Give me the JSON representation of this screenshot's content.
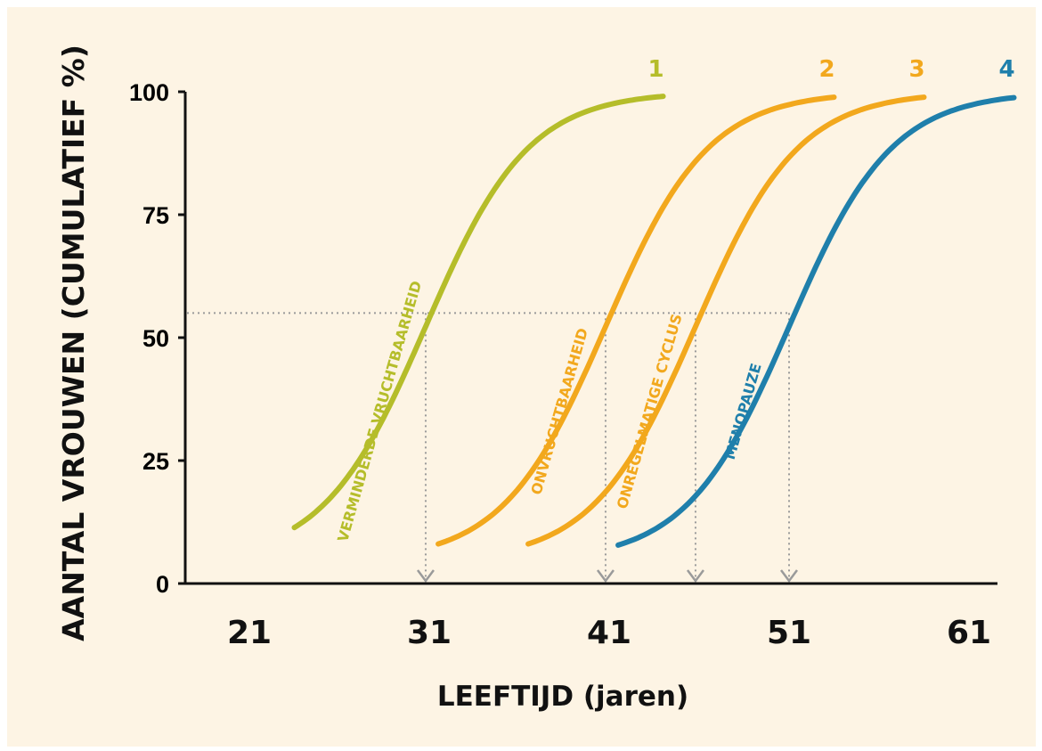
{
  "chart_data": {
    "type": "line",
    "xlabel": "LEEFTIJD (jaren)",
    "ylabel": "AANTAL VROUWEN (CUMULATIEF %)",
    "x_ticks": [
      "21",
      "31",
      "41",
      "51",
      "61"
    ],
    "y_ticks": [
      "0",
      "25",
      "50",
      "75",
      "100"
    ],
    "xlim": [
      18.5,
      63
    ],
    "ylim": [
      0,
      100
    ],
    "reference_y": 55,
    "grid": false,
    "series": [
      {
        "number": "1",
        "name": "VERMINDERDE VRUCHTBAARHEID",
        "color": "#b5bd2a",
        "midpoint": 30.8,
        "x_start": 23.5,
        "x_end": 44.0
      },
      {
        "number": "2",
        "name": "ONVRUCHTBAARHEID",
        "color": "#f2a81d",
        "midpoint": 40.8,
        "x_start": 31.5,
        "x_end": 53.5
      },
      {
        "number": "3",
        "name": "ONREGELMATIGE CYCLUS",
        "color": "#f2a81d",
        "midpoint": 45.8,
        "x_start": 36.5,
        "x_end": 58.5
      },
      {
        "number": "4",
        "name": "MENOPAUZE",
        "color": "#1f7fab",
        "midpoint": 51.0,
        "x_start": 41.5,
        "x_end": 63.5
      }
    ]
  }
}
